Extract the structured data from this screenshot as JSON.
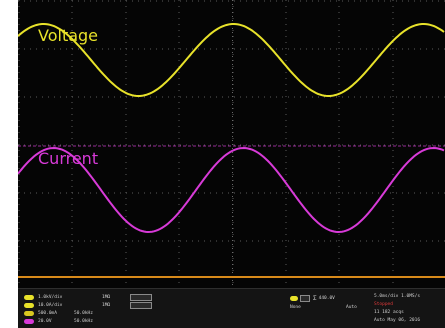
{
  "colors": {
    "voltage": "#e8e22a",
    "current": "#d83ad8",
    "ground": "#d88a1a",
    "grid": "#5a5a5a",
    "background": "#050505"
  },
  "traces": {
    "voltage": {
      "label": "Voltage"
    },
    "current": {
      "label": "Current"
    }
  },
  "status": {
    "channels": [
      {
        "a": "1.0kV/div",
        "b": "1MΩ",
        "c": ""
      },
      {
        "a": "10.0A/div",
        "b": "1MΩ",
        "c": ""
      },
      {
        "a": "500.0mA",
        "b": "50.0kHz",
        "c": ""
      },
      {
        "a": "20.0V",
        "b": "50.0kHz",
        "c": ""
      }
    ],
    "trigger": {
      "level": "440.0V",
      "mode": "None",
      "sweep": "Auto"
    },
    "acquisition": {
      "line1": "5.0ms/div  1.0MS/s",
      "line2": "Stopped",
      "line3": "11 182 acqs",
      "line4": "Auto   May 06, 2016"
    }
  }
}
